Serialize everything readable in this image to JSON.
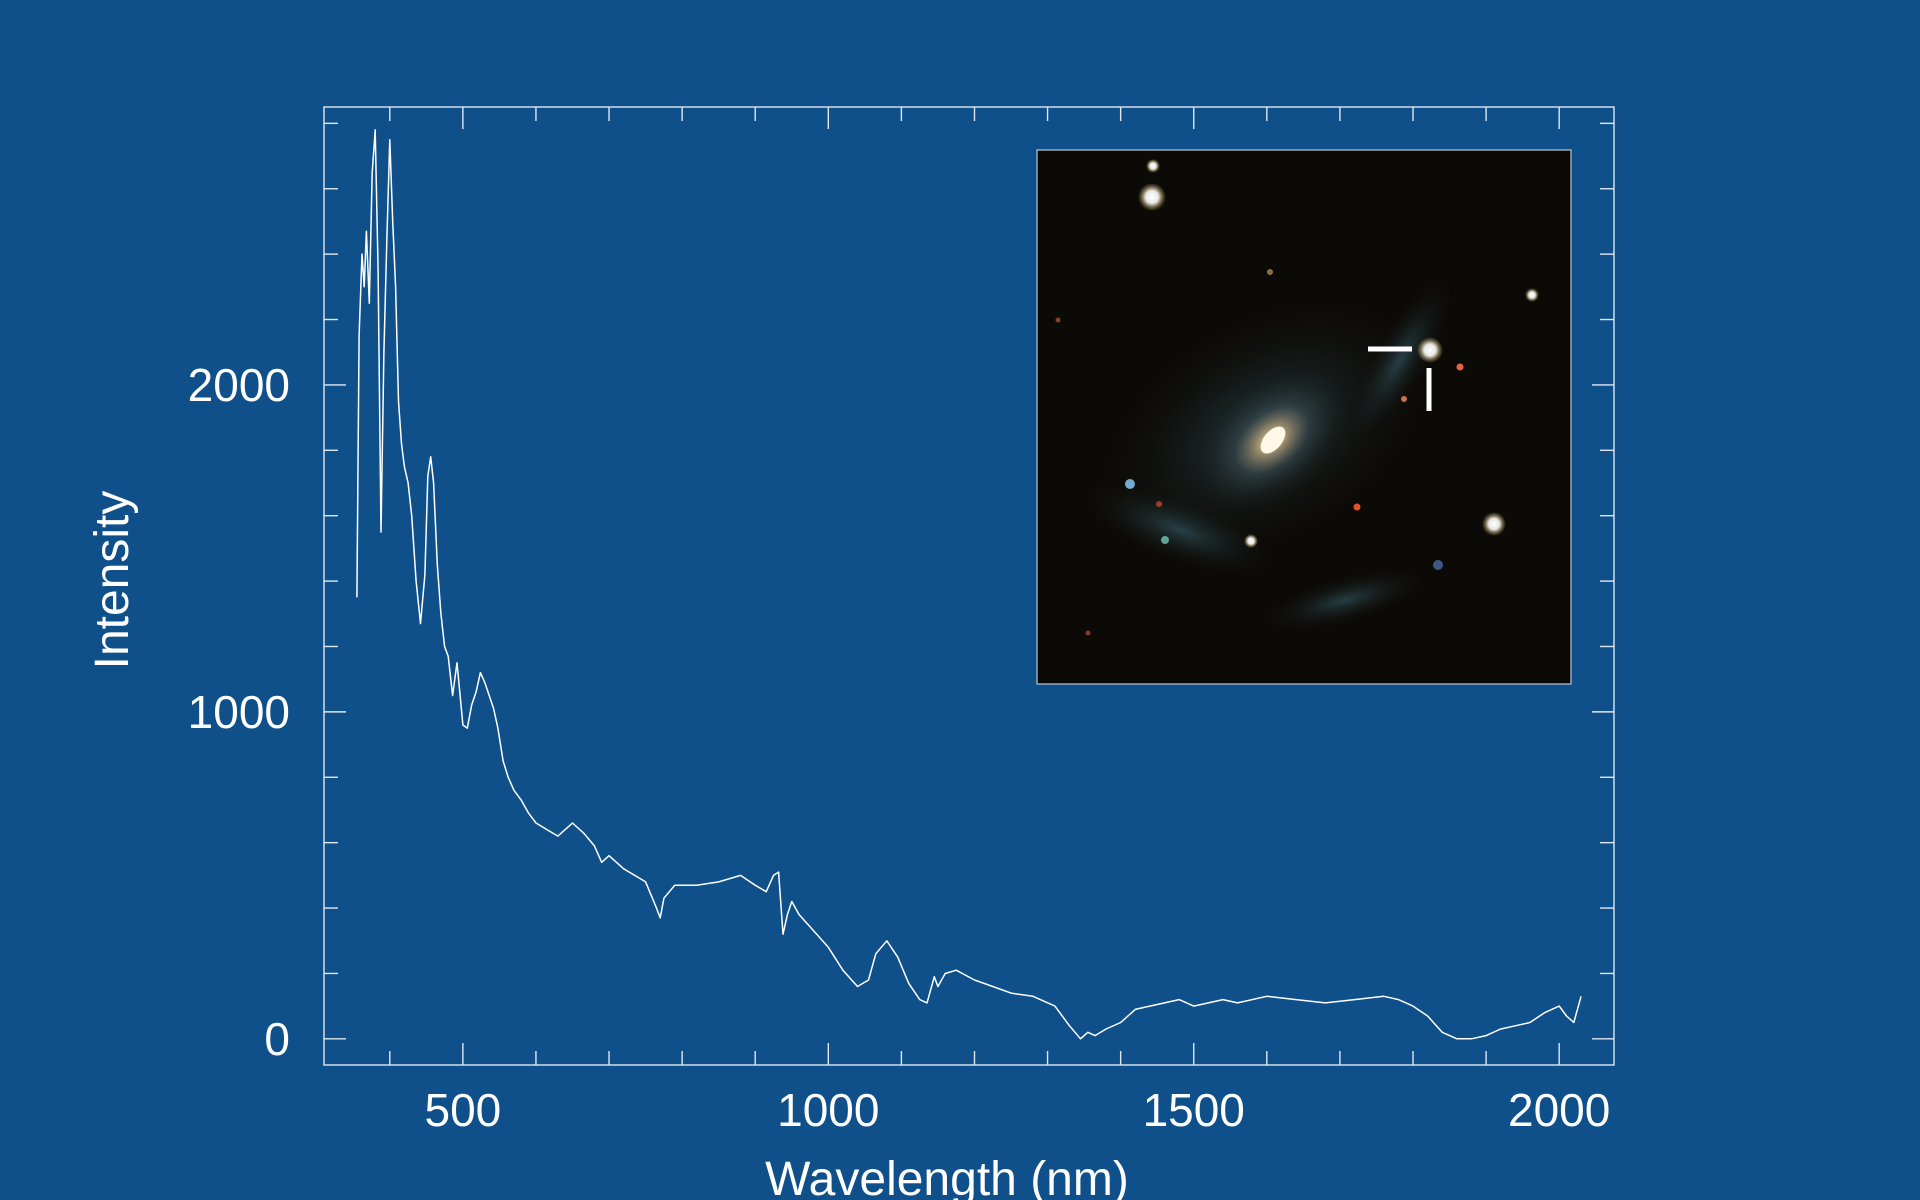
{
  "chart_data": {
    "type": "line",
    "title": "",
    "xlabel": "Wavelength (nm)",
    "ylabel": "Intensity",
    "xlim": [
      310,
      2075
    ],
    "ylim": [
      -80,
      2850
    ],
    "x_ticks": [
      500,
      1000,
      1500,
      2000
    ],
    "y_ticks": [
      0,
      1000,
      2000
    ],
    "x_minor_step": 100,
    "y_minor_step": 200,
    "grid": false,
    "series": [
      {
        "name": "",
        "color": "#ffffff",
        "x": [
          355,
          358,
          362,
          365,
          368,
          372,
          376,
          380,
          384,
          388,
          392,
          396,
          400,
          404,
          408,
          412,
          416,
          420,
          425,
          430,
          436,
          442,
          448,
          452,
          456,
          460,
          465,
          470,
          475,
          480,
          486,
          492,
          500,
          506,
          512,
          518,
          524,
          530,
          536,
          542,
          548,
          555,
          562,
          570,
          580,
          590,
          600,
          615,
          630,
          650,
          665,
          680,
          690,
          700,
          720,
          750,
          765,
          770,
          775,
          790,
          820,
          850,
          880,
          900,
          915,
          925,
          932,
          938,
          944,
          950,
          960,
          980,
          1000,
          1020,
          1040,
          1055,
          1065,
          1080,
          1095,
          1110,
          1125,
          1135,
          1145,
          1150,
          1160,
          1175,
          1200,
          1225,
          1250,
          1280,
          1310,
          1330,
          1345,
          1355,
          1365,
          1380,
          1400,
          1420,
          1440,
          1460,
          1480,
          1500,
          1520,
          1540,
          1560,
          1600,
          1640,
          1680,
          1720,
          1760,
          1780,
          1800,
          1820,
          1840,
          1860,
          1880,
          1900,
          1920,
          1940,
          1960,
          1980,
          2000,
          2010,
          2020,
          2030
        ],
        "values": [
          1350,
          2150,
          2400,
          2300,
          2470,
          2250,
          2650,
          2780,
          2350,
          1550,
          2100,
          2450,
          2750,
          2500,
          2300,
          1950,
          1820,
          1750,
          1700,
          1600,
          1400,
          1270,
          1420,
          1720,
          1780,
          1700,
          1450,
          1300,
          1200,
          1170,
          1050,
          1150,
          960,
          950,
          1020,
          1060,
          1120,
          1090,
          1050,
          1010,
          950,
          850,
          800,
          760,
          730,
          690,
          660,
          640,
          620,
          660,
          630,
          590,
          540,
          560,
          520,
          480,
          400,
          370,
          430,
          470,
          470,
          480,
          500,
          470,
          450,
          500,
          510,
          320,
          380,
          420,
          380,
          330,
          280,
          210,
          160,
          180,
          260,
          300,
          250,
          170,
          120,
          110,
          190,
          160,
          200,
          210,
          180,
          160,
          140,
          130,
          100,
          40,
          0,
          20,
          10,
          30,
          50,
          90,
          100,
          110,
          120,
          100,
          110,
          120,
          110,
          130,
          120,
          110,
          120,
          130,
          120,
          100,
          70,
          20,
          0,
          0,
          10,
          30,
          40,
          50,
          80,
          100,
          70,
          50,
          130
        ]
      }
    ],
    "inset_image": {
      "kind": "telescope-image",
      "subject": "spiral galaxy with marked point source",
      "background_color": "#0c0a06",
      "border_color": "#b8c7d6"
    }
  }
}
